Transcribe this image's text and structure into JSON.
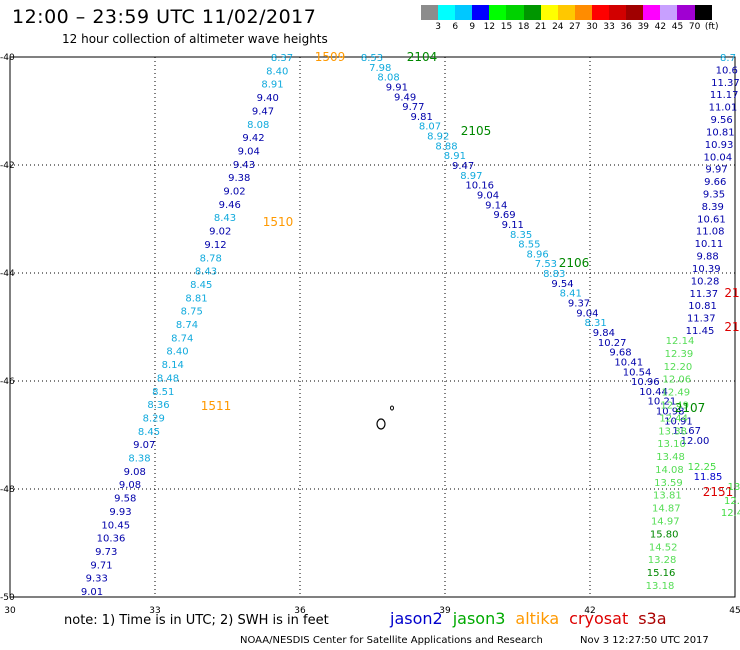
{
  "header": {
    "title": "12:00 – 23:59 UTC 11/02/2017",
    "subtitle": "12 hour collection of altimeter wave heights"
  },
  "legend": {
    "swatches": [
      "#8c8c8c",
      "#00ffff",
      "#00c8ff",
      "#0000ff",
      "#00ff00",
      "#00d200",
      "#009600",
      "#ffff00",
      "#ffc800",
      "#ff8c00",
      "#ff0000",
      "#d20000",
      "#a00000",
      "#ff00ff",
      "#c8a0ff",
      "#a000d2",
      "#000000"
    ],
    "labels": [
      "3",
      "6",
      "9",
      "12",
      "15",
      "18",
      "21",
      "24",
      "27",
      "30",
      "33",
      "36",
      "39",
      "42",
      "45",
      "70",
      "(ft)"
    ]
  },
  "axes": {
    "x_ticks": [
      "30",
      "33",
      "36",
      "39",
      "42",
      "45"
    ],
    "y_ticks": [
      "-40",
      "-42",
      "-44",
      "-46",
      "-48",
      "-50"
    ]
  },
  "tracks": [
    {
      "id": "t1509",
      "color": "#00aaee",
      "x0": 282,
      "y0": 57,
      "x1": 92,
      "y1": 591,
      "values": [
        "8.37",
        "8.40",
        "8.91",
        "9.40",
        "9.47",
        "8.08",
        "9.42",
        "9.04",
        "9.43",
        "9.38",
        "9.02",
        "9.46",
        "8.43",
        "9.02",
        "9.12",
        "8.78",
        "8.43",
        "8.45",
        "8.81",
        "8.75",
        "8.74",
        "8.74",
        "8.40",
        "8.14",
        "8.48",
        "8.51",
        "8.36",
        "8.29",
        "8.45",
        "9.07",
        "8.38",
        "9.08",
        "9.08",
        "9.58",
        "9.93",
        "10.45",
        "10.36",
        "9.73",
        "9.71",
        "9.33",
        "9.01"
      ],
      "colors": [
        "c",
        "c",
        "c",
        "b",
        "b",
        "c",
        "b",
        "b",
        "b",
        "b",
        "b",
        "b",
        "c",
        "b",
        "b",
        "c",
        "c",
        "c",
        "c",
        "c",
        "c",
        "c",
        "c",
        "c",
        "c",
        "c",
        "c",
        "c",
        "c",
        "b",
        "c",
        "b",
        "b",
        "b",
        "b",
        "b",
        "b",
        "b",
        "b",
        "b",
        "b"
      ]
    },
    {
      "id": "t2104",
      "color": "#0000cc",
      "x0": 372,
      "y0": 57,
      "x1": 695,
      "y1": 440,
      "values": [
        "8.53",
        "7.98",
        "8.08",
        "9.91",
        "9.49",
        "9.77",
        "9.81",
        "8.07",
        "8.92",
        "8.88",
        "8.91",
        "9.47",
        "8.97",
        "10.16",
        "9.04",
        "9.14",
        "9.69",
        "9.11",
        "8.35",
        "8.55",
        "8.96",
        "7.53",
        "8.83",
        "9.54",
        "8.41",
        "9.37",
        "9.04",
        "8.31",
        "9.84",
        "10.27",
        "9.68",
        "10.41",
        "10.54",
        "10.96",
        "10.44",
        "10.21",
        "10.98",
        "10.91",
        "11.67",
        "12.00"
      ],
      "colors": [
        "c",
        "c",
        "c",
        "b",
        "b",
        "b",
        "b",
        "c",
        "c",
        "c",
        "c",
        "b",
        "c",
        "b",
        "b",
        "b",
        "b",
        "b",
        "c",
        "c",
        "c",
        "c",
        "c",
        "b",
        "c",
        "b",
        "b",
        "c",
        "b",
        "b",
        "b",
        "b",
        "b",
        "b",
        "b",
        "b",
        "b",
        "b",
        "b",
        "b"
      ]
    },
    {
      "id": "t2107",
      "color": "#44dd44",
      "x0": 680,
      "y0": 340,
      "x1": 660,
      "y1": 585,
      "values": [
        "12.14",
        "12.39",
        "12.20",
        "12.06",
        "12.49",
        "12.49",
        "12.44",
        "13.38",
        "13.10",
        "13.48",
        "14.08",
        "13.59",
        "13.81",
        "14.87",
        "14.97",
        "15.80",
        "14.52",
        "13.28",
        "15.16",
        "13.18"
      ],
      "colors": [
        "g",
        "g",
        "g",
        "g",
        "g",
        "g",
        "g",
        "g",
        "g",
        "g",
        "g",
        "g",
        "g",
        "g",
        "g",
        "G",
        "g",
        "g",
        "G",
        "g"
      ]
    },
    {
      "id": "tright",
      "color": "#0000cc",
      "x0": 728,
      "y0": 57,
      "x1": 700,
      "y1": 330,
      "values": [
        "8.7",
        "10.6",
        "11.37",
        "11.17",
        "11.01",
        "9.56",
        "10.81",
        "10.93",
        "10.04",
        "9.97",
        "9.66",
        "9.35",
        "8.39",
        "10.61",
        "11.08",
        "10.11",
        "9.88",
        "10.39",
        "10.28",
        "11.37",
        "10.81",
        "11.37",
        "11.45"
      ],
      "colors": [
        "c",
        "b",
        "b",
        "b",
        "b",
        "b",
        "b",
        "b",
        "b",
        "b",
        "b",
        "b",
        "b",
        "b",
        "b",
        "b",
        "b",
        "b",
        "b",
        "b",
        "b",
        "b",
        "b"
      ]
    }
  ],
  "pass_labels": [
    {
      "text": "1509",
      "color": "#ff9900"
    },
    {
      "text": "2104",
      "color": "#008800"
    },
    {
      "text": "2105",
      "color": "#008800"
    },
    {
      "text": "1510",
      "color": "#ff9900"
    },
    {
      "text": "2106",
      "color": "#008800"
    },
    {
      "text": "1511",
      "color": "#ff9900"
    },
    {
      "text": "2107",
      "color": "#008800"
    },
    {
      "text": "2151",
      "color": "#dd0000"
    },
    {
      "text": "21",
      "color": "#dd0000"
    },
    {
      "text": "21",
      "color": "#dd0000"
    }
  ],
  "extra_values": [
    {
      "text": "11.85",
      "color": "#0000cc"
    },
    {
      "text": "12.25",
      "color": "#44dd44"
    },
    {
      "text": "12.",
      "color": "#44dd44"
    },
    {
      "text": "12.4",
      "color": "#44dd44"
    },
    {
      "text": "13",
      "color": "#44dd44"
    }
  ],
  "footer": {
    "note": "note:  1) Time is in UTC;  2) SWH is in feet",
    "satellites": [
      {
        "name": "jason2",
        "color": "#0000cc"
      },
      {
        "name": "jason3",
        "color": "#00aa00"
      },
      {
        "name": "altika",
        "color": "#ff9900"
      },
      {
        "name": "cryosat",
        "color": "#dd0000"
      },
      {
        "name": "s3a",
        "color": "#aa0000"
      }
    ],
    "credit": "NOAA/NESDIS Center for Satellite Applications and Research",
    "timestamp": "Nov  3 12:27:50 UTC 2017"
  }
}
